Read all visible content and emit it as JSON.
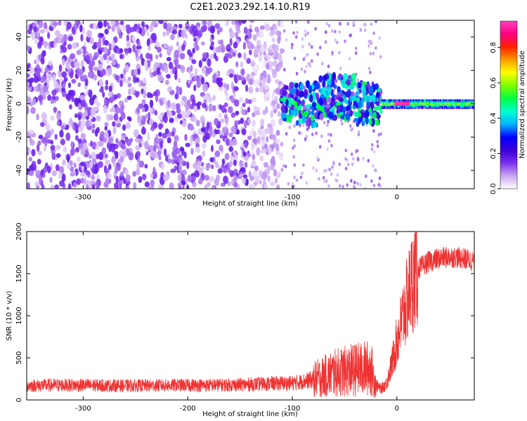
{
  "figure_title": "C2E1.2023.292.14.10.R19",
  "chart_data": [
    {
      "type": "heatmap",
      "xlabel": "Height of straight line (km)",
      "ylabel": "Frequency (Hz)",
      "xlim": [
        -354,
        74
      ],
      "ylim": [
        -51,
        50
      ],
      "xticks": [
        -300,
        -200,
        -100,
        0
      ],
      "yticks": [
        -40,
        -20,
        0,
        20,
        40
      ],
      "grid": false,
      "colorbar": {
        "label": "Normalized spectral amplitude",
        "range": [
          0,
          0.95
        ],
        "ticks": [
          "0.0",
          "0.2",
          "0.4",
          "0.6",
          "0.8"
        ],
        "colors": [
          "#ffffff",
          "#c9a7f0",
          "#7b2ff0",
          "#3a00d8",
          "#0000ff",
          "#00b4ff",
          "#00ffd0",
          "#00ff40",
          "#7dff00",
          "#ffff00",
          "#ff9a00",
          "#ff2000",
          "#ff0080",
          "#ff40c0"
        ]
      },
      "bands": [
        {
          "x_range": [
            -354,
            -110
          ],
          "freq_range": [
            -51,
            50
          ],
          "typical_amplitude": 0.12
        },
        {
          "x_range": [
            -110,
            -15
          ],
          "freq_range": [
            -10,
            12
          ],
          "typical_amplitude": 0.35
        },
        {
          "x_range": [
            -15,
            74
          ],
          "freq_range": [
            -2.5,
            2.5
          ],
          "typical_amplitude": 0.5
        }
      ]
    },
    {
      "type": "line",
      "xlabel": "Height of straight line (km)",
      "ylabel": "SNR (10 * v/v)",
      "xlim": [
        -354,
        74
      ],
      "ylim": [
        0,
        2000
      ],
      "xticks": [
        -300,
        -200,
        -100,
        0
      ],
      "yticks": [
        0,
        500,
        1000,
        1500,
        2000
      ],
      "grid": false,
      "color": "#ee3333",
      "series": [
        {
          "x": [
            -354,
            -330,
            -300,
            -270,
            -240,
            -210,
            -180,
            -150,
            -120,
            -100,
            -80,
            -60,
            -40,
            -25,
            -20,
            -15,
            -10,
            -5,
            0,
            5,
            10,
            15,
            20,
            30,
            40,
            50,
            60,
            74
          ],
          "y": [
            170,
            175,
            175,
            170,
            170,
            175,
            175,
            180,
            195,
            200,
            240,
            320,
            360,
            380,
            180,
            130,
            200,
            420,
            700,
            950,
            1200,
            1420,
            1550,
            1640,
            1680,
            1700,
            1690,
            1650
          ]
        }
      ]
    }
  ]
}
